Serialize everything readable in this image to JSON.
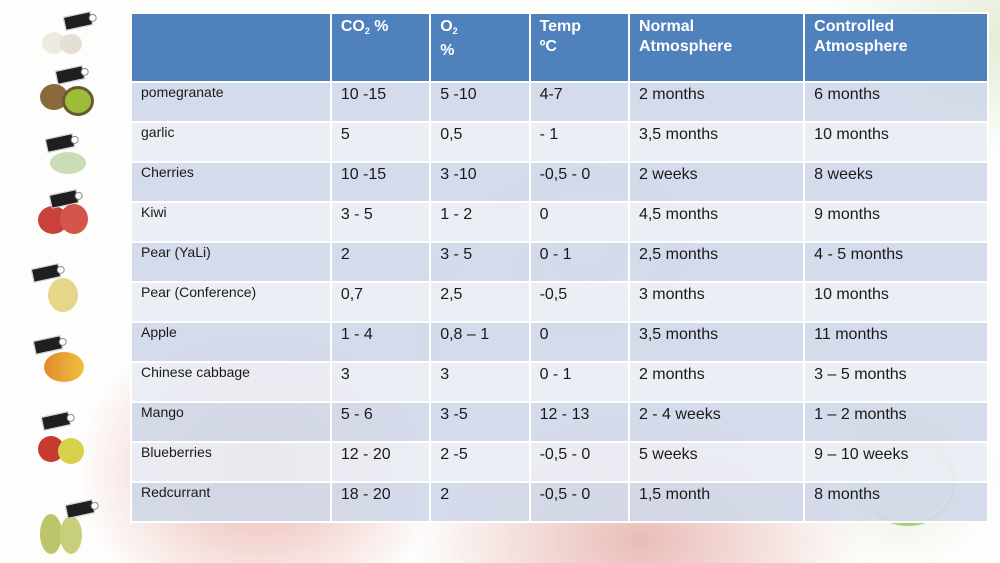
{
  "table": {
    "headers": {
      "col0": "",
      "co2_main": "CO",
      "co2_sub": "2",
      "co2_unit": " %",
      "o2_main": "O",
      "o2_sub": "2",
      "o2_unit": "%",
      "temp_line1": "Temp",
      "temp_line2": "ºC",
      "normal_line1": "Normal",
      "normal_line2": "Atmosphere",
      "controlled_line1": "Controlled",
      "controlled_line2": "Atmosphere"
    },
    "rows": [
      {
        "product": "pomegranate",
        "co2": "10 -15",
        "o2": "5 -10",
        "temp": "4-7",
        "normal": "2 months",
        "controlled": "6 months"
      },
      {
        "product": "garlic",
        "co2": "5",
        "o2": "0,5",
        "temp": "- 1",
        "normal": "3,5 months",
        "controlled": "10 months"
      },
      {
        "product": "Cherries",
        "co2": "10 -15",
        "o2": "3 -10",
        "temp": "-0,5 - 0",
        "normal": "2 weeks",
        "controlled": "8 weeks"
      },
      {
        "product": "Kiwi",
        "co2": "3 - 5",
        "o2": "1 - 2",
        "temp": "0",
        "normal": "4,5 months",
        "controlled": "9 months"
      },
      {
        "product": "Pear (YaLi)",
        "co2": "2",
        "o2": "3 - 5",
        "temp": "0 - 1",
        "normal": "2,5 months",
        "controlled": "4 - 5 months"
      },
      {
        "product": "Pear (Conference)",
        "co2": "0,7",
        "o2": "2,5",
        "temp": "-0,5",
        "normal": "3 months",
        "controlled": "10 months"
      },
      {
        "product": "Apple",
        "co2": "1 - 4",
        "o2": "0,8 – 1",
        "temp": "0",
        "normal": "3,5 months",
        "controlled": "11 months"
      },
      {
        "product": "Chinese cabbage",
        "co2": "3",
        "o2": "3",
        "temp": "0 - 1",
        "normal": "2 months",
        "controlled": "3 – 5 months"
      },
      {
        "product": "Mango",
        "co2": "5 - 6",
        "o2": "3 -5",
        "temp": "12 - 13",
        "normal": "2 - 4 weeks",
        "controlled": "1 – 2 months"
      },
      {
        "product": "Blueberries",
        "co2": "12 - 20",
        "o2": "2 -5",
        "temp": "-0,5 - 0",
        "normal": "5 weeks",
        "controlled": "9 – 10 weeks"
      },
      {
        "product": "Redcurrant",
        "co2": "18 - 20",
        "o2": "2",
        "temp": "-0,5 - 0",
        "normal": "1,5 month",
        "controlled": "8 months"
      }
    ]
  },
  "colors": {
    "header_bg": "#4f81bd",
    "row_odd_bg": "#d0d8e8",
    "row_even_bg": "#e9edf4"
  },
  "sidebar_icons": [
    "garlic-icon",
    "kiwi-icon",
    "cabbage-icon",
    "pomegranate-icon",
    "pear-icon",
    "mango-icon",
    "apple-icon",
    "pear-icon"
  ]
}
